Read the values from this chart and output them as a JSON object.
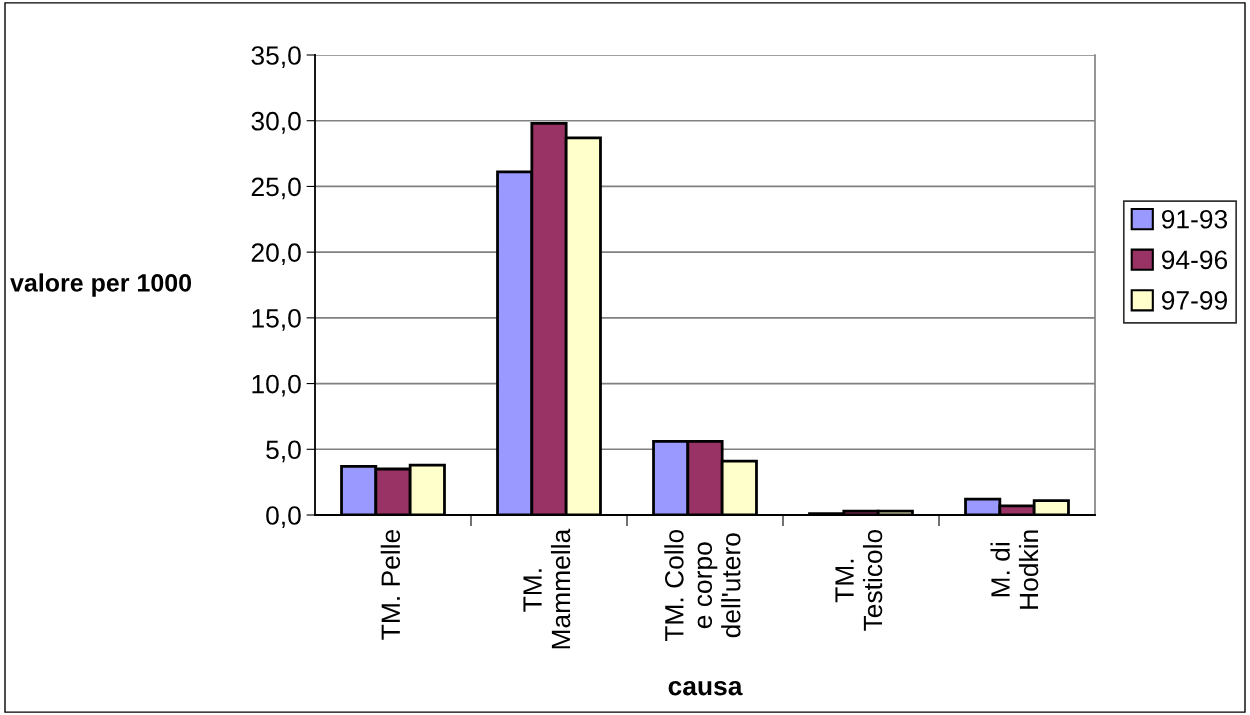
{
  "chart_data": {
    "type": "bar",
    "xlabel": "causa",
    "ylabel": "valore per 1000",
    "categories": [
      "TM. Pelle",
      "TM.\nMammella",
      "TM. Collo\ne corpo\ndell'utero",
      "TM.\nTesticolo",
      "M. di\nHodkin"
    ],
    "series": [
      {
        "name": "91-93",
        "color": "#9999ff",
        "values": [
          3.7,
          26.1,
          5.6,
          0.1,
          1.2
        ]
      },
      {
        "name": "94-96",
        "color": "#993366",
        "values": [
          3.5,
          29.8,
          5.6,
          0.3,
          0.7
        ]
      },
      {
        "name": "97-99",
        "color": "#ffffcc",
        "values": [
          3.8,
          28.7,
          4.1,
          0.3,
          1.1
        ]
      }
    ],
    "ylim": [
      0,
      35
    ],
    "yticks": [
      {
        "value": 0,
        "label": "0,0"
      },
      {
        "value": 5,
        "label": "5,0"
      },
      {
        "value": 10,
        "label": "10,0"
      },
      {
        "value": 15,
        "label": "15,0"
      },
      {
        "value": 20,
        "label": "20,0"
      },
      {
        "value": 25,
        "label": "25,0"
      },
      {
        "value": 30,
        "label": "30,0"
      },
      {
        "value": 35,
        "label": "35,0"
      }
    ],
    "grid": "y",
    "legend": "right"
  }
}
